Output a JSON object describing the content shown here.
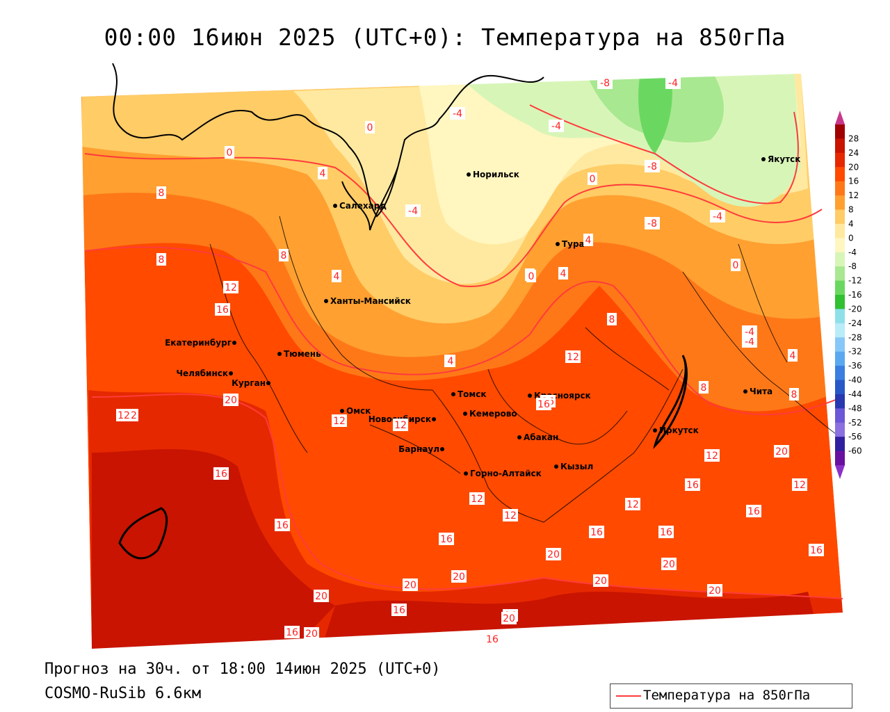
{
  "title": "00:00 16июн 2025 (UTC+0): Температура на 850гПа",
  "footer": {
    "forecast": "Прогноз на 30ч. от 18:00 14июн 2025 (UTC+0)",
    "model": "COSMO-RuSib 6.6км"
  },
  "legend": {
    "label": "Температура на 850гПа",
    "line_color": "#ff3b3b"
  },
  "colorbar": {
    "levels": [
      "28",
      "24",
      "20",
      "16",
      "12",
      "8",
      "4",
      "0",
      "-4",
      "-8",
      "-12",
      "-16",
      "-20",
      "-24",
      "-28",
      "-32",
      "-36",
      "-40",
      "-44",
      "-48",
      "-52",
      "-56",
      "-60"
    ],
    "colors": [
      "#a00000",
      "#c81400",
      "#e62800",
      "#ff4a00",
      "#ff7818",
      "#ffa030",
      "#ffcc66",
      "#ffe9a0",
      "#fff6c0",
      "#d8f5b8",
      "#a8e890",
      "#6ad860",
      "#30c030",
      "#8ee0e8",
      "#b8ecf8",
      "#88c8f8",
      "#5aa8f0",
      "#3a7ee0",
      "#2858c8",
      "#2838b0",
      "#6a58d8",
      "#8a70e0",
      "#3020a0",
      "#6a10a0"
    ]
  },
  "cities": [
    {
      "name": "Норильск"
    },
    {
      "name": "Якутск"
    },
    {
      "name": "Салехард"
    },
    {
      "name": "Тура"
    },
    {
      "name": "Ханты-Мансийск"
    },
    {
      "name": "Екатеринбург"
    },
    {
      "name": "Тюмень"
    },
    {
      "name": "Челябинск"
    },
    {
      "name": "Курган"
    },
    {
      "name": "Омск"
    },
    {
      "name": "Томск"
    },
    {
      "name": "Новосибирск"
    },
    {
      "name": "Кемерово"
    },
    {
      "name": "Красноярск"
    },
    {
      "name": "Иркутск"
    },
    {
      "name": "Чита"
    },
    {
      "name": "Барнаул"
    },
    {
      "name": "Абакан"
    },
    {
      "name": "Горно-Алтайск"
    },
    {
      "name": "Кызыл"
    }
  ],
  "contour_labels": [
    "-8",
    "-4",
    "-8",
    "-4",
    "-4",
    "0",
    "0",
    "-4",
    "0",
    "-8",
    "-4",
    "0",
    "4",
    "8",
    "8",
    "8",
    "4",
    "0",
    "4",
    "-4",
    "12",
    "16",
    "8",
    "4",
    "8",
    "12",
    "16",
    "12",
    "4",
    "12",
    "8",
    "20",
    "12",
    "16",
    "12",
    "12",
    "12",
    "16",
    "16",
    "16",
    "16",
    "12",
    "12",
    "16",
    "16",
    "16",
    "16",
    "20",
    "20",
    "20",
    "20",
    "20",
    "20",
    "20",
    "16",
    "16",
    "20",
    "20",
    "16",
    "20",
    "16",
    "12",
    "4",
    "4",
    "4",
    "0",
    "-4"
  ]
}
